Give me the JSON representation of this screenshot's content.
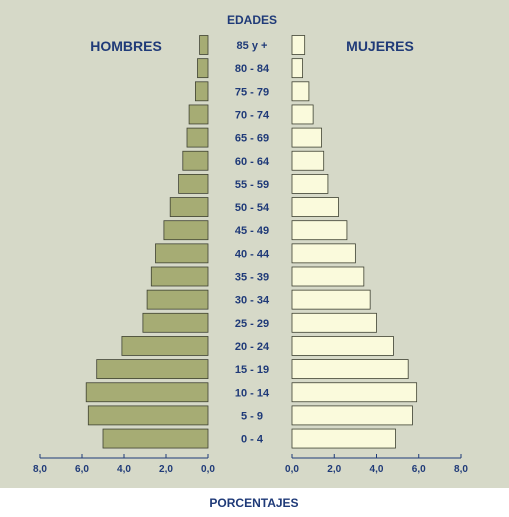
{
  "chart_data": {
    "type": "bar",
    "subtype": "population-pyramid",
    "title": "",
    "center_axis_title": "EDADES",
    "xlabel": "PORCENTAJES",
    "left_series_name": "HOMBRES",
    "right_series_name": "MUJERES",
    "categories": [
      "85 y +",
      "80 - 84",
      "75 - 79",
      "70 - 74",
      "65 - 69",
      "60 - 64",
      "55 - 59",
      "50 - 54",
      "45 - 49",
      "40 - 44",
      "35 - 39",
      "30 - 34",
      "25 - 29",
      "20 - 24",
      "15 - 19",
      "10 - 14",
      "5 - 9",
      "0 - 4"
    ],
    "series": [
      {
        "name": "HOMBRES",
        "values": [
          0.4,
          0.5,
          0.6,
          0.9,
          1.0,
          1.2,
          1.4,
          1.8,
          2.1,
          2.5,
          2.7,
          2.9,
          3.1,
          4.1,
          5.3,
          5.8,
          5.7,
          5.0
        ]
      },
      {
        "name": "MUJERES",
        "values": [
          0.6,
          0.5,
          0.8,
          1.0,
          1.4,
          1.5,
          1.7,
          2.2,
          2.6,
          3.0,
          3.4,
          3.7,
          4.0,
          4.8,
          5.5,
          5.9,
          5.7,
          4.9
        ]
      }
    ],
    "xlim": [
      0,
      8
    ],
    "ticks": [
      "8,0",
      "6,0",
      "4,0",
      "2,0",
      "0,0"
    ],
    "right_ticks": [
      "0,0",
      "2,0",
      "4,0",
      "6,0",
      "8,0"
    ],
    "grid": false,
    "colors": {
      "background": "#d6d9c8",
      "men_bar": "#a6ac74",
      "women_bar": "#fafadc",
      "bar_stroke": "#3f4232",
      "text": "#1f3a78"
    }
  }
}
